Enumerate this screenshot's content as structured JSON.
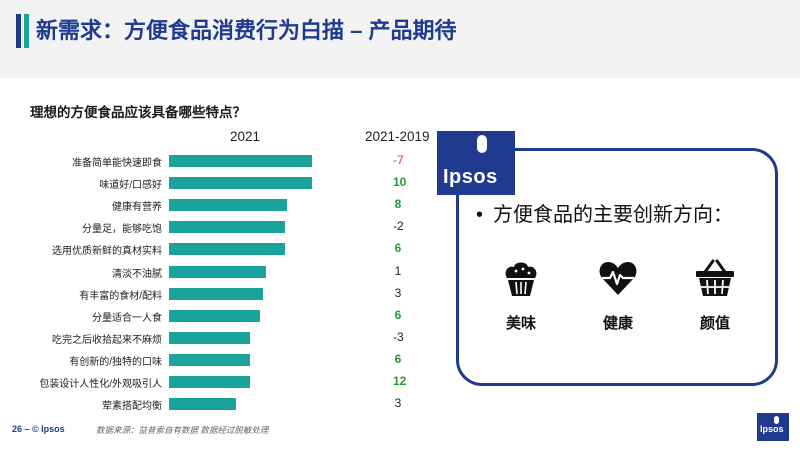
{
  "header": {
    "title": "新需求：方便食品消费行为白描 – 产品期待"
  },
  "question": "理想的方便食品应该具备哪些特点？",
  "columns": {
    "y2021": "2021",
    "diff": "2021-2019"
  },
  "chart_data": {
    "type": "bar",
    "orientation": "horizontal",
    "categories": [
      "准备简单能快速即食",
      "味道好/口感好",
      "健康有营养",
      "分量足，能够吃饱",
      "选用优质新鲜的真材实料",
      "清淡不油腻",
      "有丰富的食材/配料",
      "分量适合一人食",
      "吃完之后收拾起来不麻烦",
      "有创新的/独特的口味",
      "包装设计人性化/外观吸引人",
      "荤素搭配均衡"
    ],
    "series": [
      {
        "name": "2021",
        "values": [
          0.53,
          0.53,
          0.44,
          0.43,
          0.43,
          0.36,
          0.35,
          0.34,
          0.3,
          0.3,
          0.3,
          0.25
        ]
      }
    ],
    "diff_values": [
      "-7",
      "10",
      "8",
      "-2",
      "6",
      "1",
      "3",
      "6",
      "-3",
      "6",
      "12",
      "3"
    ],
    "colors": {
      "bar": "#1aa39a",
      "positive": "#1e9e3a",
      "negative": "#d03a2a",
      "neutral": "#222222"
    }
  },
  "innovation": {
    "bullet": "•",
    "title": "方便食品的主要创新方向：",
    "items": [
      {
        "label": "美味",
        "icon": "cupcake-icon"
      },
      {
        "label": "健康",
        "icon": "heart-pulse-icon"
      },
      {
        "label": "颜值",
        "icon": "basket-icon"
      }
    ]
  },
  "brand": {
    "logo_text": "Ipsos",
    "accent": "#1f3a8f",
    "teal": "#1aa39a"
  },
  "footer": {
    "page": "26 –  © Ipsos",
    "source": "数据来源：益普索自有数据 数据经过脱敏处理"
  }
}
